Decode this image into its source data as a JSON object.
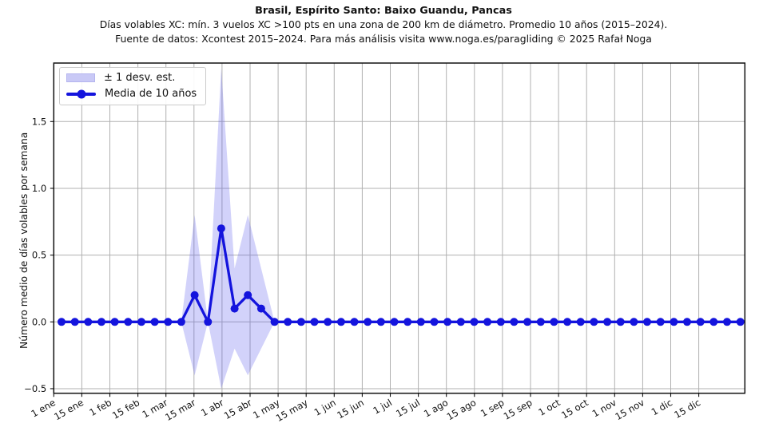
{
  "header": {
    "title": "Brasil, Espírito Santo: Baixo Guandu, Pancas",
    "subtitle": "Días volables XC: mín. 3 vuelos XC >100 pts en una zona de 200 km de diámetro. Promedio 10 años (2015–2024).",
    "source": "Fuente de datos: Xcontest 2015–2024. Para más análisis visita www.noga.es/paragliding © 2025 Rafał Noga"
  },
  "legend": {
    "band_label": "± 1 desv. est.",
    "line_label": "Media de 10 años"
  },
  "chart_data": {
    "type": "line",
    "title": "Brasil, Espírito Santo: Baixo Guandu, Pancas",
    "subtitle": "Días volables XC: mín. 3 vuelos XC >100 pts en una zona de 200 km de diámetro. Promedio 10 años (2015–2024).",
    "source": "Fuente de datos: Xcontest 2015–2024. Para más análisis visita www.noga.es/paragliding © 2025 Rafał Noga",
    "xlabel": "",
    "ylabel": "Número medio de días volables por semana",
    "x_unit": "week",
    "n_points": 52,
    "x_tick_labels": [
      "1 ene",
      "15 ene",
      "1 feb",
      "15 feb",
      "1 mar",
      "15 mar",
      "1 abr",
      "15 abr",
      "1 may",
      "15 may",
      "1 jun",
      "15 jun",
      "1 jul",
      "15 jul",
      "1 ago",
      "15 ago",
      "1 sep",
      "15 sep",
      "1 oct",
      "15 oct",
      "1 nov",
      "15 nov",
      "1 dic",
      "15 dic"
    ],
    "y_ticks": [
      -0.5,
      0.0,
      0.5,
      1.0,
      1.5
    ],
    "y_tick_labels": [
      "−0.5",
      "0.0",
      "0.5",
      "1.0",
      "1.5"
    ],
    "ylim": [
      -0.54,
      1.94
    ],
    "grid": true,
    "legend_position": "upper-left",
    "series": [
      {
        "name": "Media de 10 años",
        "role": "mean-line",
        "values": [
          0,
          0,
          0,
          0,
          0,
          0,
          0,
          0,
          0,
          0,
          0.2,
          0,
          0.7,
          0.1,
          0.2,
          0.1,
          0,
          0,
          0,
          0,
          0,
          0,
          0,
          0,
          0,
          0,
          0,
          0,
          0,
          0,
          0,
          0,
          0,
          0,
          0,
          0,
          0,
          0,
          0,
          0,
          0,
          0,
          0,
          0,
          0,
          0,
          0,
          0,
          0,
          0,
          0,
          0
        ]
      },
      {
        "name": "± 1 desv. est.",
        "role": "std-band",
        "values": [
          0,
          0,
          0,
          0,
          0,
          0,
          0,
          0,
          0,
          0,
          0.6,
          0,
          1.2,
          0.3,
          0.6,
          0.3,
          0,
          0,
          0,
          0,
          0,
          0,
          0,
          0,
          0,
          0,
          0,
          0,
          0,
          0,
          0,
          0,
          0,
          0,
          0,
          0,
          0,
          0,
          0,
          0,
          0,
          0,
          0,
          0,
          0,
          0,
          0,
          0,
          0,
          0,
          0,
          0
        ]
      }
    ],
    "colors": {
      "line": "#1414dd",
      "band_fill": "rgba(90,90,235,0.27)",
      "legend_band": "#c9c9f6",
      "grid": "#b0b0b0",
      "spine": "#111111",
      "text": "#111111"
    }
  }
}
